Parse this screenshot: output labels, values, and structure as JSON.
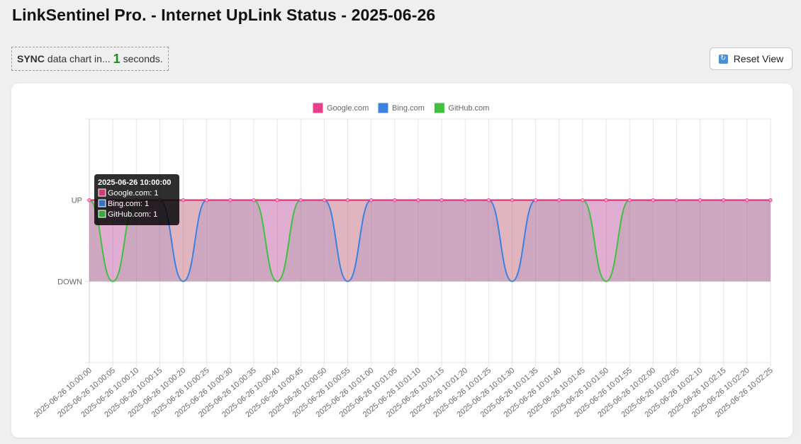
{
  "page": {
    "title": "LinkSentinel Pro. - Internet UpLink Status - 2025-06-26"
  },
  "sync": {
    "strong": "SYNC",
    "before": "data chart in...",
    "count": "1",
    "after": "seconds."
  },
  "reset": {
    "label": "Reset View",
    "icon": "refresh-icon"
  },
  "tooltip": {
    "title": "2025-06-26 10:00:00",
    "lines": [
      "Google.com: 1",
      "Bing.com: 1",
      "GitHub.com: 1"
    ]
  },
  "chart_data": {
    "type": "area",
    "legend_position": "top",
    "grid": true,
    "x": [
      "2025-06-26 10:00:00",
      "2025-06-26 10:00:05",
      "2025-06-26 10:00:10",
      "2025-06-26 10:00:15",
      "2025-06-26 10:00:20",
      "2025-06-26 10:00:25",
      "2025-06-26 10:00:30",
      "2025-06-26 10:00:35",
      "2025-06-26 10:00:40",
      "2025-06-26 10:00:45",
      "2025-06-26 10:00:50",
      "2025-06-26 10:00:55",
      "2025-06-26 10:01:00",
      "2025-06-26 10:01:05",
      "2025-06-26 10:01:10",
      "2025-06-26 10:01:15",
      "2025-06-26 10:01:20",
      "2025-06-26 10:01:25",
      "2025-06-26 10:01:30",
      "2025-06-26 10:01:35",
      "2025-06-26 10:01:40",
      "2025-06-26 10:01:45",
      "2025-06-26 10:01:50",
      "2025-06-26 10:01:55",
      "2025-06-26 10:02:00",
      "2025-06-26 10:02:05",
      "2025-06-26 10:02:10",
      "2025-06-26 10:02:15",
      "2025-06-26 10:02:20",
      "2025-06-26 10:02:25"
    ],
    "y_ticks": [
      {
        "value": 1,
        "label": "UP"
      },
      {
        "value": 0,
        "label": "DOWN"
      }
    ],
    "ylim": [
      -1,
      2
    ],
    "series": [
      {
        "name": "Google.com",
        "color": "#e83e8c",
        "fill": "rgba(232,62,140,0.35)",
        "values": [
          1,
          1,
          1,
          1,
          1,
          1,
          1,
          1,
          1,
          1,
          1,
          1,
          1,
          1,
          1,
          1,
          1,
          1,
          1,
          1,
          1,
          1,
          1,
          1,
          1,
          1,
          1,
          1,
          1,
          1
        ]
      },
      {
        "name": "Bing.com",
        "color": "#3b82e0",
        "fill": "rgba(59,130,224,0.18)",
        "values": [
          1,
          1,
          1,
          1,
          0,
          1,
          1,
          1,
          1,
          1,
          1,
          0,
          1,
          1,
          1,
          1,
          1,
          1,
          0,
          1,
          1,
          1,
          1,
          1,
          1,
          1,
          1,
          1,
          1,
          1
        ]
      },
      {
        "name": "GitHub.com",
        "color": "#3fc03f",
        "fill": "rgba(63,192,63,0.18)",
        "values": [
          1,
          0,
          1,
          1,
          1,
          1,
          1,
          1,
          0,
          1,
          1,
          1,
          1,
          1,
          1,
          1,
          1,
          1,
          1,
          1,
          1,
          1,
          0,
          1,
          1,
          1,
          1,
          1,
          1,
          1
        ]
      }
    ]
  }
}
